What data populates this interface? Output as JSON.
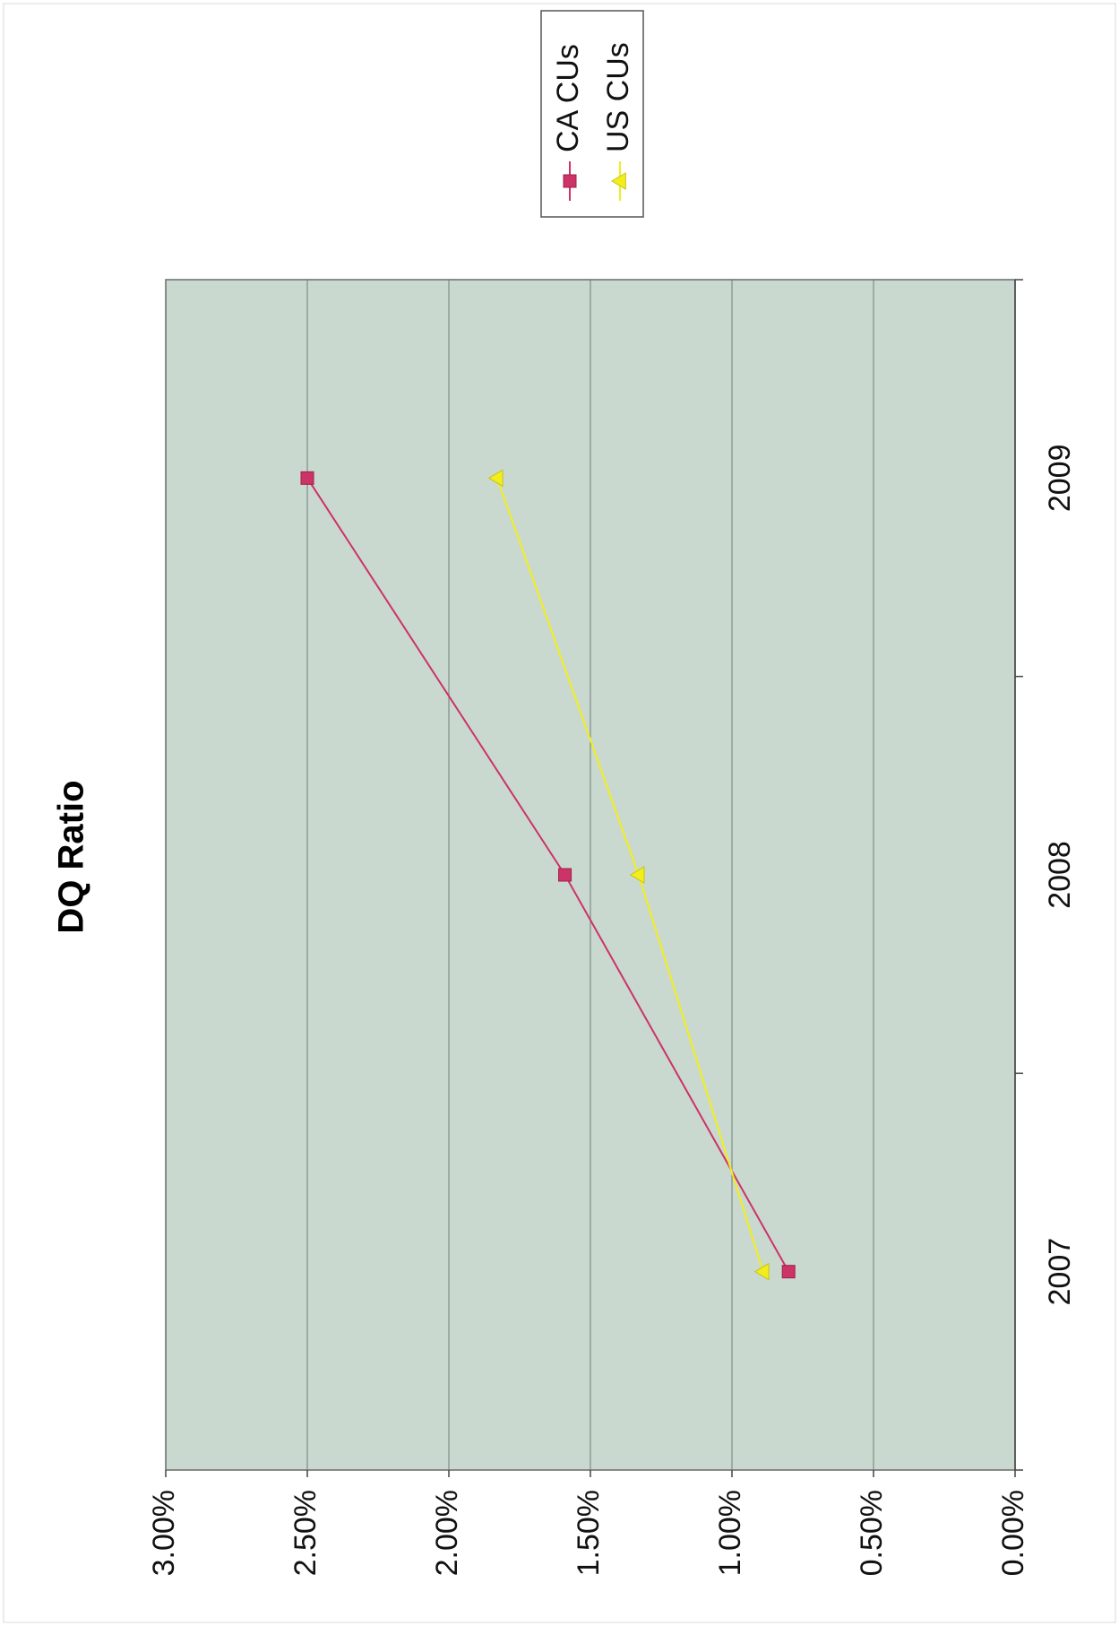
{
  "chart_data": {
    "type": "line",
    "title": "DQ Ratio",
    "xlabel": "",
    "ylabel": "",
    "categories": [
      "2007",
      "2008",
      "2009"
    ],
    "series": [
      {
        "name": "CA CUs",
        "values": [
          0.008,
          0.0159,
          0.025
        ],
        "color": "#cc3366",
        "marker": "square"
      },
      {
        "name": "US CUs",
        "values": [
          0.0089,
          0.0133,
          0.0183
        ],
        "color": "#f2ee1c",
        "marker": "triangle"
      }
    ],
    "ylim": [
      0,
      0.03
    ],
    "yticks": [
      "0.00%",
      "0.50%",
      "1.00%",
      "1.50%",
      "2.00%",
      "2.50%",
      "3.00%"
    ],
    "grid": true,
    "legend_position": "top-right",
    "plot_background": "#c9d9d0",
    "orientation": "rotated-90-counterclockwise"
  }
}
